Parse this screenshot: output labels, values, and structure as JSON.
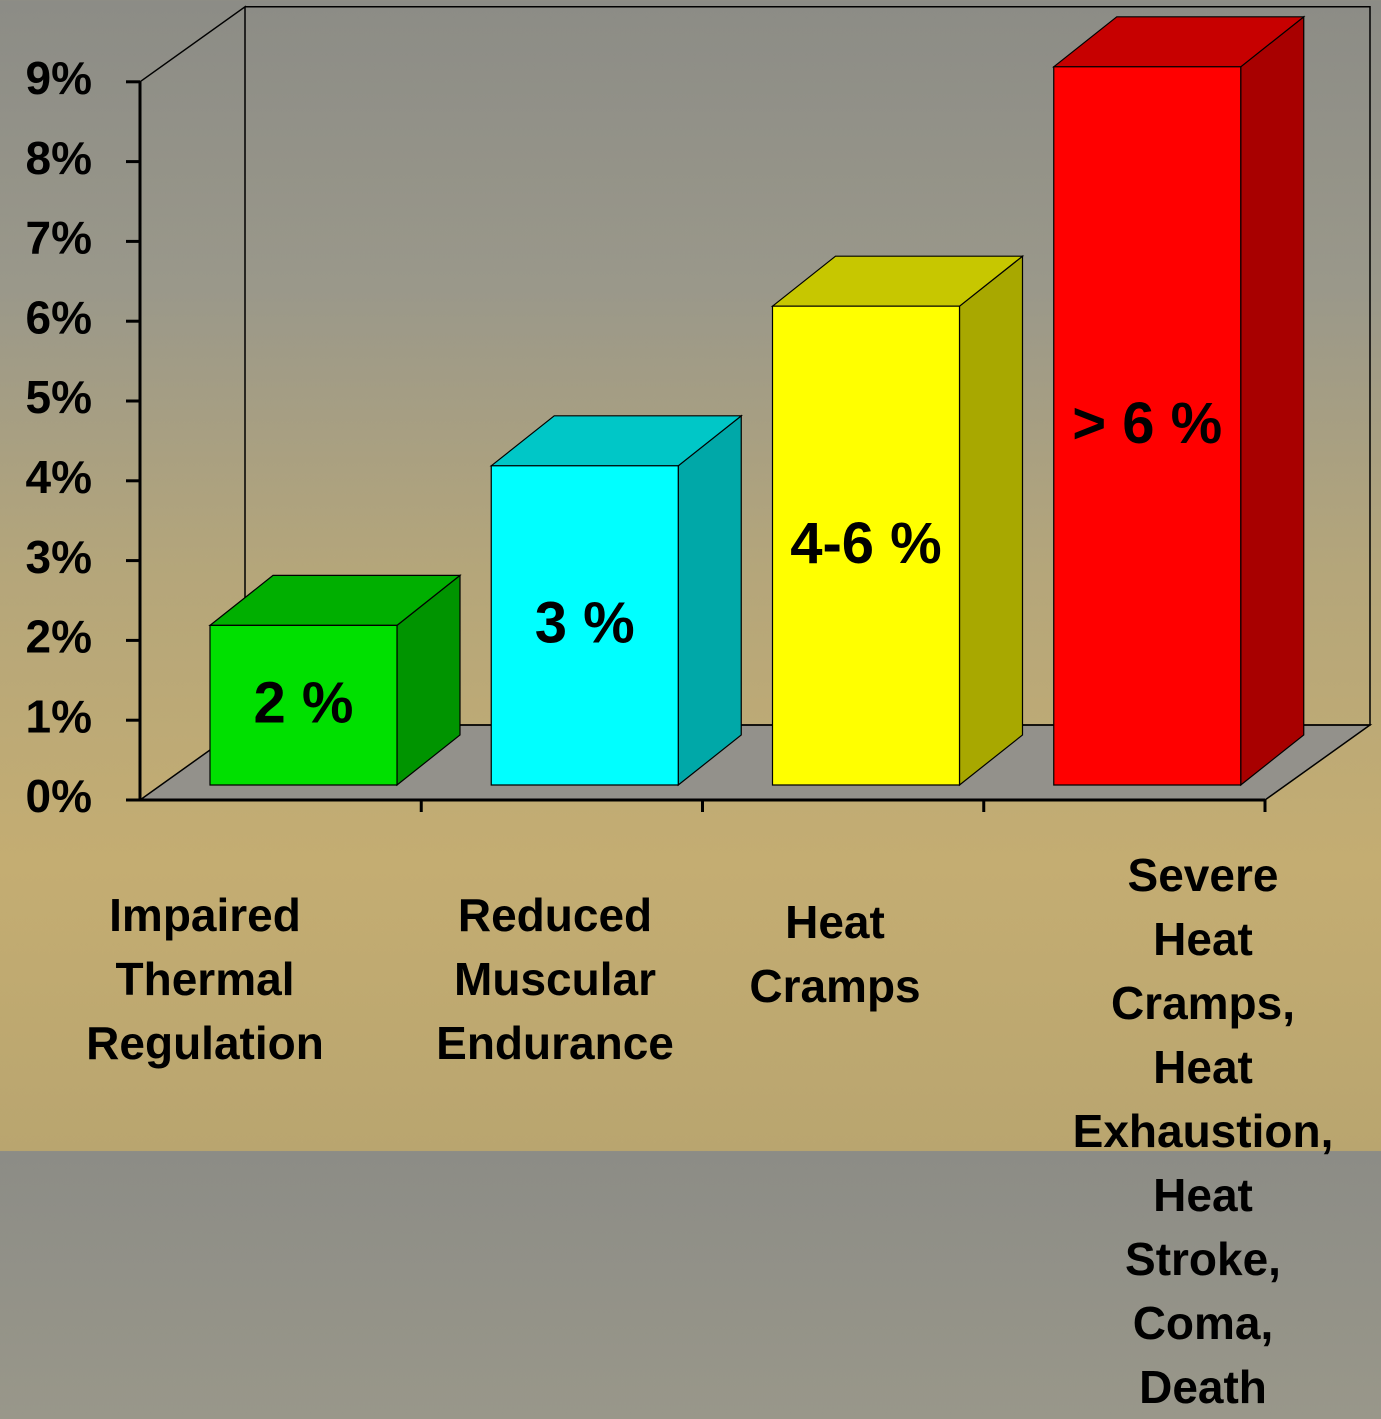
{
  "chart_data": {
    "type": "bar3d",
    "categories": [
      "Impaired\nThermal\nRegulation",
      "Reduced\nMuscular\nEndurance",
      "Heat\nCramps",
      "Severe Heat\nCramps, Heat\nExhaustion,\nHeat Stroke,\nComa, Death"
    ],
    "values": [
      2,
      4,
      6,
      9
    ],
    "annotations": [
      "2 %",
      "3 %",
      "4-6 %",
      "> 6 %"
    ],
    "colors": [
      "#00e000",
      "#00ffff",
      "#ffff00",
      "#ff0000"
    ],
    "ylim": [
      0,
      9
    ],
    "yticks": [
      {
        "value": 0,
        "label": "0%"
      },
      {
        "value": 1,
        "label": "1%"
      },
      {
        "value": 2,
        "label": "2%"
      },
      {
        "value": 3,
        "label": "3%"
      },
      {
        "value": 4,
        "label": "4%"
      },
      {
        "value": 5,
        "label": "5%"
      },
      {
        "value": 6,
        "label": "6%"
      },
      {
        "value": 7,
        "label": "7%"
      },
      {
        "value": 8,
        "label": "8%"
      },
      {
        "value": 9,
        "label": "9%"
      }
    ]
  }
}
